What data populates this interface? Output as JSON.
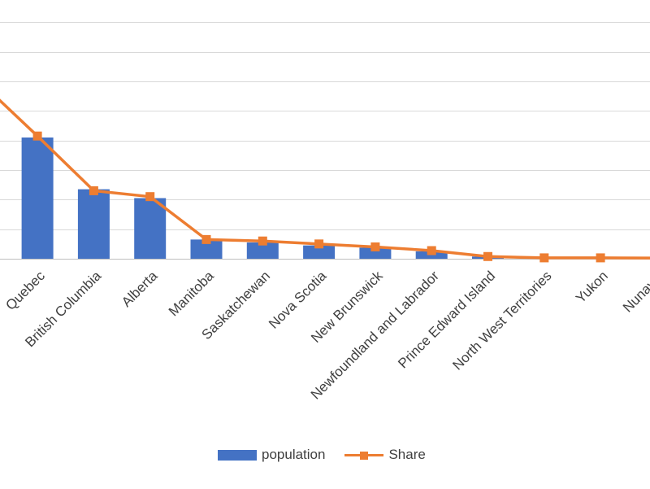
{
  "chart_data": {
    "type": "bar",
    "categories": [
      "",
      "Quebec",
      "British Columbia",
      "Alberta",
      "Manitoba",
      "Saskatchewan",
      "Nova Scotia",
      "New Brunswick",
      "Newfoundland and Labrador",
      "Prince Edward Island",
      "North West Territories",
      "Yukon",
      "Nunavut"
    ],
    "series": [
      {
        "name": "population",
        "type": "bar",
        "color": "#4472c4",
        "values": [
          null,
          8.2,
          4.7,
          4.1,
          1.3,
          1.1,
          0.9,
          0.75,
          0.5,
          0.15,
          0.04,
          0.04,
          0.04
        ]
      },
      {
        "name": "Share",
        "type": "line",
        "color": "#ed7d31",
        "values": [
          11.9,
          8.3,
          4.6,
          4.2,
          1.3,
          1.2,
          1.0,
          0.8,
          0.55,
          0.15,
          0.06,
          0.06,
          0.05
        ]
      }
    ],
    "ylim": [
      0,
      17.5
    ],
    "grid": true,
    "legend_position": "bottom"
  },
  "legend": {
    "population_label": "population",
    "share_label": "Share"
  },
  "colors": {
    "bar": "#4472c4",
    "line": "#ed7d31",
    "grid": "#d9d9d9",
    "axis": "#bfbfbf",
    "text": "#404040"
  }
}
